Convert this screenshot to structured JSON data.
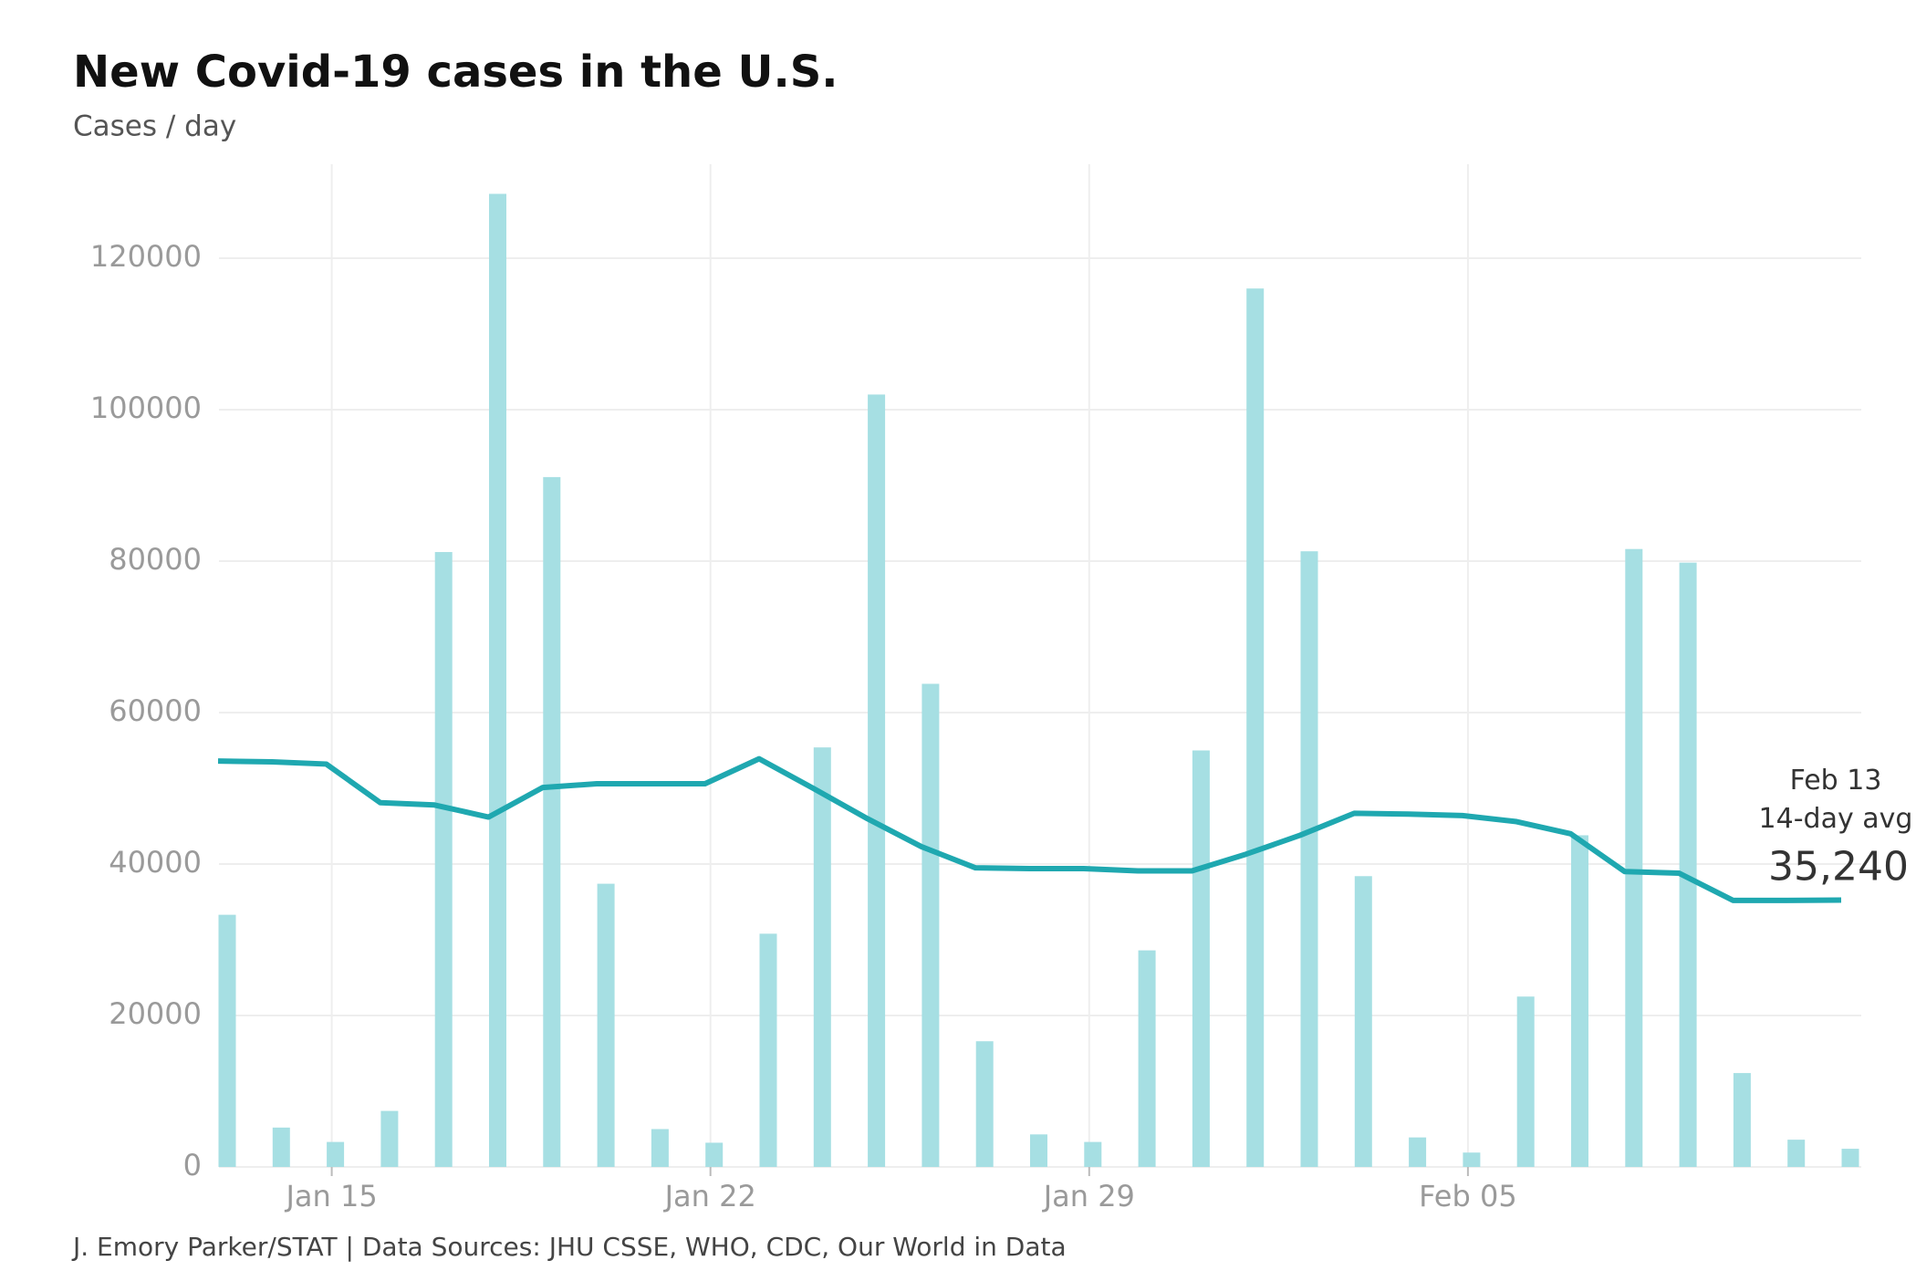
{
  "chart_data": {
    "type": "bar",
    "title": "New Covid-19 cases in the U.S.",
    "subtitle": "Cases / day",
    "source": "J. Emory Parker/STAT | Data Sources: JHU CSSE, WHO, CDC, Our World in Data",
    "categories": [
      null,
      null,
      "Jan 15",
      null,
      null,
      null,
      null,
      null,
      null,
      "Jan 22",
      null,
      null,
      null,
      null,
      null,
      null,
      "Jan 29",
      null,
      null,
      null,
      null,
      null,
      null,
      "Feb 05",
      null,
      null,
      null,
      null,
      null,
      null,
      null
    ],
    "series": [
      {
        "type": "bar",
        "color": "#a6dfe3",
        "values": [
          33300,
          5200,
          3300,
          7400,
          81200,
          128500,
          91100,
          37400,
          5000,
          3200,
          30800,
          55400,
          102000,
          63800,
          16600,
          4300,
          3300,
          28600,
          55000,
          116000,
          81300,
          38400,
          3900,
          1900,
          22500,
          43800,
          81600,
          79800,
          12400,
          3600,
          2400
        ]
      },
      {
        "type": "line",
        "color": "#1fa8b0",
        "values": [
          53600,
          53500,
          53200,
          48100,
          47800,
          46200,
          50100,
          50600,
          50600,
          50600,
          53900,
          50000,
          46000,
          42300,
          39500,
          39400,
          39400,
          39100,
          39100,
          41300,
          43800,
          46700,
          46600,
          46400,
          45600,
          44000,
          39000,
          38800,
          35200,
          35200,
          35240
        ],
        "value_labels": [
          null,
          null,
          null,
          null,
          null,
          null,
          null,
          null,
          null,
          null,
          null,
          null,
          null,
          null,
          null,
          null,
          null,
          null,
          null,
          null,
          null,
          null,
          null,
          null,
          null,
          null,
          null,
          null,
          null,
          null,
          "35,240"
        ]
      }
    ],
    "annotations": [
      "Feb 13",
      "14-day avg"
    ],
    "ylim": [
      0,
      130000
    ],
    "yticks": [
      0,
      20000,
      40000,
      60000,
      80000,
      100000,
      120000
    ],
    "grid": true
  }
}
